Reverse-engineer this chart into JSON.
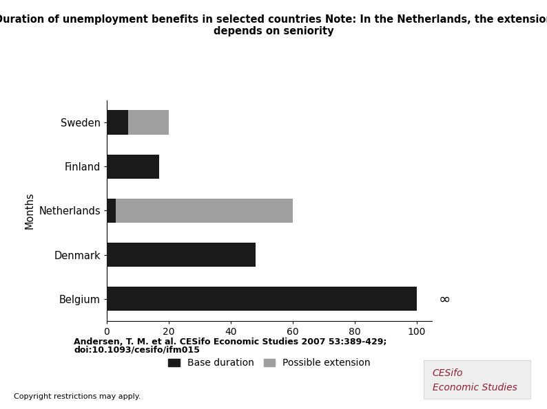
{
  "countries": [
    "Belgium",
    "Denmark",
    "Netherlands",
    "Finland",
    "Sweden"
  ],
  "base_duration": [
    100,
    48,
    3,
    17,
    7
  ],
  "possible_extension": [
    0,
    0,
    57,
    0,
    13
  ],
  "base_color": "#1a1a1a",
  "extension_color": "#a0a0a0",
  "title_line1": "Duration of unemployment benefits in selected countries Note: In the Netherlands, the extension",
  "title_line2": "depends on seniority",
  "ylabel": "Months",
  "xlim": [
    0,
    105
  ],
  "xticks": [
    0,
    20,
    40,
    60,
    80,
    100
  ],
  "citation_line1": "Andersen, T. M. et al. CESifo Economic Studies 2007 53:389-429;",
  "citation_line2": "doi:10.1093/cesifo/ifm015",
  "copyright": "Copyright restrictions may apply.",
  "background_color": "#ffffff",
  "cesfo_color": "#8b2035",
  "legend_label_base": "Base duration",
  "legend_label_ext": "Possible extension"
}
